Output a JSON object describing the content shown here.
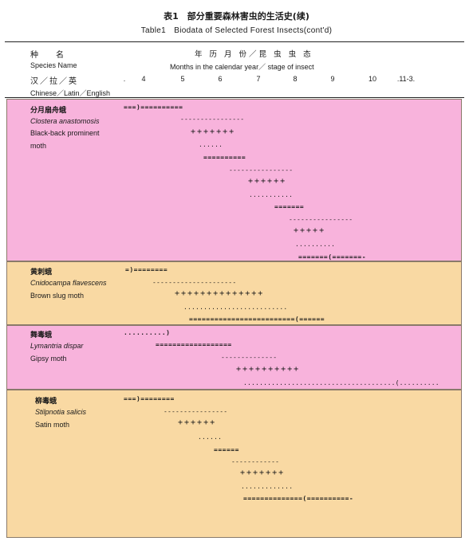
{
  "title": {
    "cn": "表1　部分重要森林害虫的生活史(续)",
    "en": "Table1　Biodata of Selected Forest Insects(cont'd)"
  },
  "header": {
    "species_cn": "种　名",
    "species_en": "Species Name",
    "lang_cn": "汉／拉／英",
    "lang_en": "Chinese／Latin／English",
    "months_cn": "年 历 月 份／昆 虫 虫 态",
    "months_en": "Months in the calendar year／ stage of insect",
    "months": [
      ".",
      "4",
      "5",
      "6",
      "7",
      "8",
      "9",
      "10",
      ".11-3."
    ]
  },
  "species": [
    {
      "cn": "分月扇舟蛾",
      "latin": "Clostera anastomosis",
      "en": [
        "Black-back prominent",
        "moth"
      ],
      "marks": [
        "===)==========",
        "----------------",
        "+++++++",
        "......",
        "==========",
        "----------------",
        "++++++",
        "...........",
        "=======",
        "----------------",
        "+++++",
        "..........",
        "=======(=======-"
      ]
    },
    {
      "cn": "黄刺蛾",
      "latin": "Cnidocampa flavescens",
      "en": [
        "Brown slug moth"
      ],
      "marks": [
        "=)========",
        "---------------------",
        "++++++++++++++",
        "..........................",
        "=========================(======"
      ]
    },
    {
      "cn": "舞毒蛾",
      "latin": "Lymantria dispar",
      "en": [
        "Gipsy moth"
      ],
      "marks": [
        "..........)",
        "==================",
        "--------------",
        "++++++++++",
        "......................................(.........."
      ]
    },
    {
      "cn": "柳毒蛾",
      "latin": "Stilpnotia salicis",
      "en": [
        "Satin moth"
      ],
      "marks": [
        "===)========",
        "----------------",
        "++++++",
        "......",
        "======",
        "------------",
        "+++++++",
        ".............",
        "==============(==========-"
      ]
    }
  ]
}
